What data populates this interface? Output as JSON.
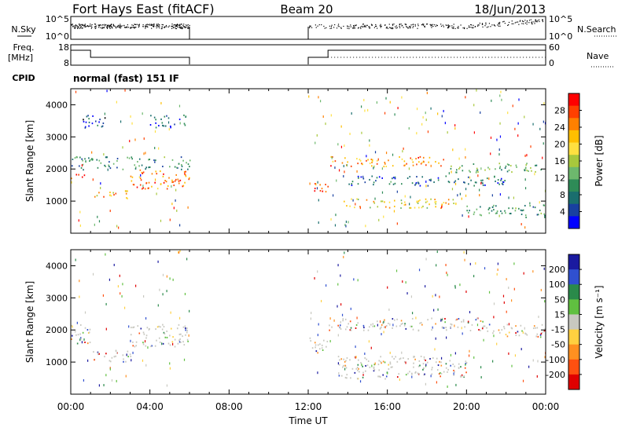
{
  "header": {
    "station": "Fort Hays East (fitACF)",
    "beam": "Beam 20",
    "date": "18/Jun/2013"
  },
  "status_panels": {
    "nsky": {
      "label": "N.Sky",
      "ticks_left": [
        "10^5",
        "10^0"
      ],
      "right_label": "N.Search",
      "ticks_right": [
        "10^5",
        "10^0"
      ]
    },
    "freq": {
      "label": "Freq.",
      "unit": "[MHz]",
      "ticks_left": [
        "18",
        "8"
      ],
      "right_label": "Nave",
      "ticks_right": [
        "60",
        "0"
      ]
    },
    "cpid": {
      "label": "CPID",
      "mode": "normal (fast) 151 IF"
    }
  },
  "chart_data": [
    {
      "type": "heatmap",
      "name": "power",
      "ylabel": "Slant Range [km]",
      "ylim": [
        0,
        4500
      ],
      "yticks": [
        "4000",
        "3000",
        "2000",
        "1000"
      ],
      "colorbar_label": "Power [dB]",
      "colorbar_ticks": [
        "28",
        "24",
        "20",
        "16",
        "12",
        "8",
        "4"
      ],
      "colorbar_colors": [
        "#ff0000",
        "#ff4000",
        "#ff8000",
        "#ffbf00",
        "#ffe040",
        "#a8c83c",
        "#6db86d",
        "#2e8b57",
        "#1a6e6e",
        "#1840a0",
        "#0000ff"
      ],
      "xlim": [
        "00:00",
        "24:00"
      ],
      "bands": [
        {
          "t0": 0.0,
          "t1": 1.0,
          "r0": 1700,
          "r1": 1850,
          "level": 0.95
        },
        {
          "t0": 1.0,
          "t1": 3.0,
          "r0": 1100,
          "r1": 1350,
          "level": 0.7
        },
        {
          "t0": 3.0,
          "t1": 6.0,
          "r0": 1400,
          "r1": 2000,
          "level": 0.8
        },
        {
          "t0": 0.0,
          "t1": 6.0,
          "r0": 2000,
          "r1": 2400,
          "level": 0.3
        },
        {
          "t0": 0.5,
          "t1": 2.0,
          "r0": 3300,
          "r1": 3700,
          "level": 0.15
        },
        {
          "t0": 4.0,
          "t1": 5.8,
          "r0": 3300,
          "r1": 3700,
          "level": 0.2
        },
        {
          "t0": 12.0,
          "t1": 13.0,
          "r0": 1300,
          "r1": 1600,
          "level": 0.95
        },
        {
          "t0": 13.0,
          "t1": 19.0,
          "r0": 2100,
          "r1": 2400,
          "level": 0.75
        },
        {
          "t0": 19.0,
          "t1": 24.0,
          "r0": 1900,
          "r1": 2200,
          "level": 0.35
        },
        {
          "t0": 13.5,
          "t1": 19.5,
          "r0": 800,
          "r1": 1100,
          "level": 0.6
        },
        {
          "t0": 14.0,
          "t1": 22.0,
          "r0": 1500,
          "r1": 1800,
          "level": 0.2
        },
        {
          "t0": 20.0,
          "t1": 24.0,
          "r0": 500,
          "r1": 900,
          "level": 0.3
        }
      ]
    },
    {
      "type": "heatmap",
      "name": "velocity",
      "ylabel": "Slant Range [km]",
      "ylim": [
        0,
        4500
      ],
      "yticks": [
        "4000",
        "3000",
        "2000",
        "1000"
      ],
      "colorbar_label": "Velocity [m s⁻¹]",
      "colorbar_ticks": [
        "200",
        "100",
        "50",
        "15",
        "-15",
        "-50",
        "-100",
        "-200"
      ],
      "colorbar_colors": [
        "#1a1aa0",
        "#3050d0",
        "#2a8a4a",
        "#60c040",
        "#c8c8c0",
        "#ffd040",
        "#ff9020",
        "#ff5010",
        "#e00000"
      ],
      "xlim": [
        "00:00",
        "24:00"
      ],
      "bands": [
        {
          "t0": 0.0,
          "t1": 1.0,
          "r0": 1600,
          "r1": 2200,
          "level": 0.5
        },
        {
          "t0": 1.0,
          "t1": 3.0,
          "r0": 1000,
          "r1": 1400,
          "level": 0.5
        },
        {
          "t0": 3.0,
          "t1": 6.0,
          "r0": 1500,
          "r1": 2200,
          "level": 0.5
        },
        {
          "t0": 12.0,
          "t1": 13.0,
          "r0": 1300,
          "r1": 1800,
          "level": 0.5
        },
        {
          "t0": 13.0,
          "t1": 21.0,
          "r0": 2000,
          "r1": 2400,
          "level": 0.5
        },
        {
          "t0": 21.0,
          "t1": 24.0,
          "r0": 1800,
          "r1": 2200,
          "level": 0.5
        },
        {
          "t0": 13.5,
          "t1": 20.0,
          "r0": 500,
          "r1": 1200,
          "level": 0.5
        }
      ]
    }
  ],
  "xaxis": {
    "label": "Time UT",
    "ticks": [
      "00:00",
      "04:00",
      "08:00",
      "12:00",
      "16:00",
      "20:00",
      "00:00"
    ]
  }
}
